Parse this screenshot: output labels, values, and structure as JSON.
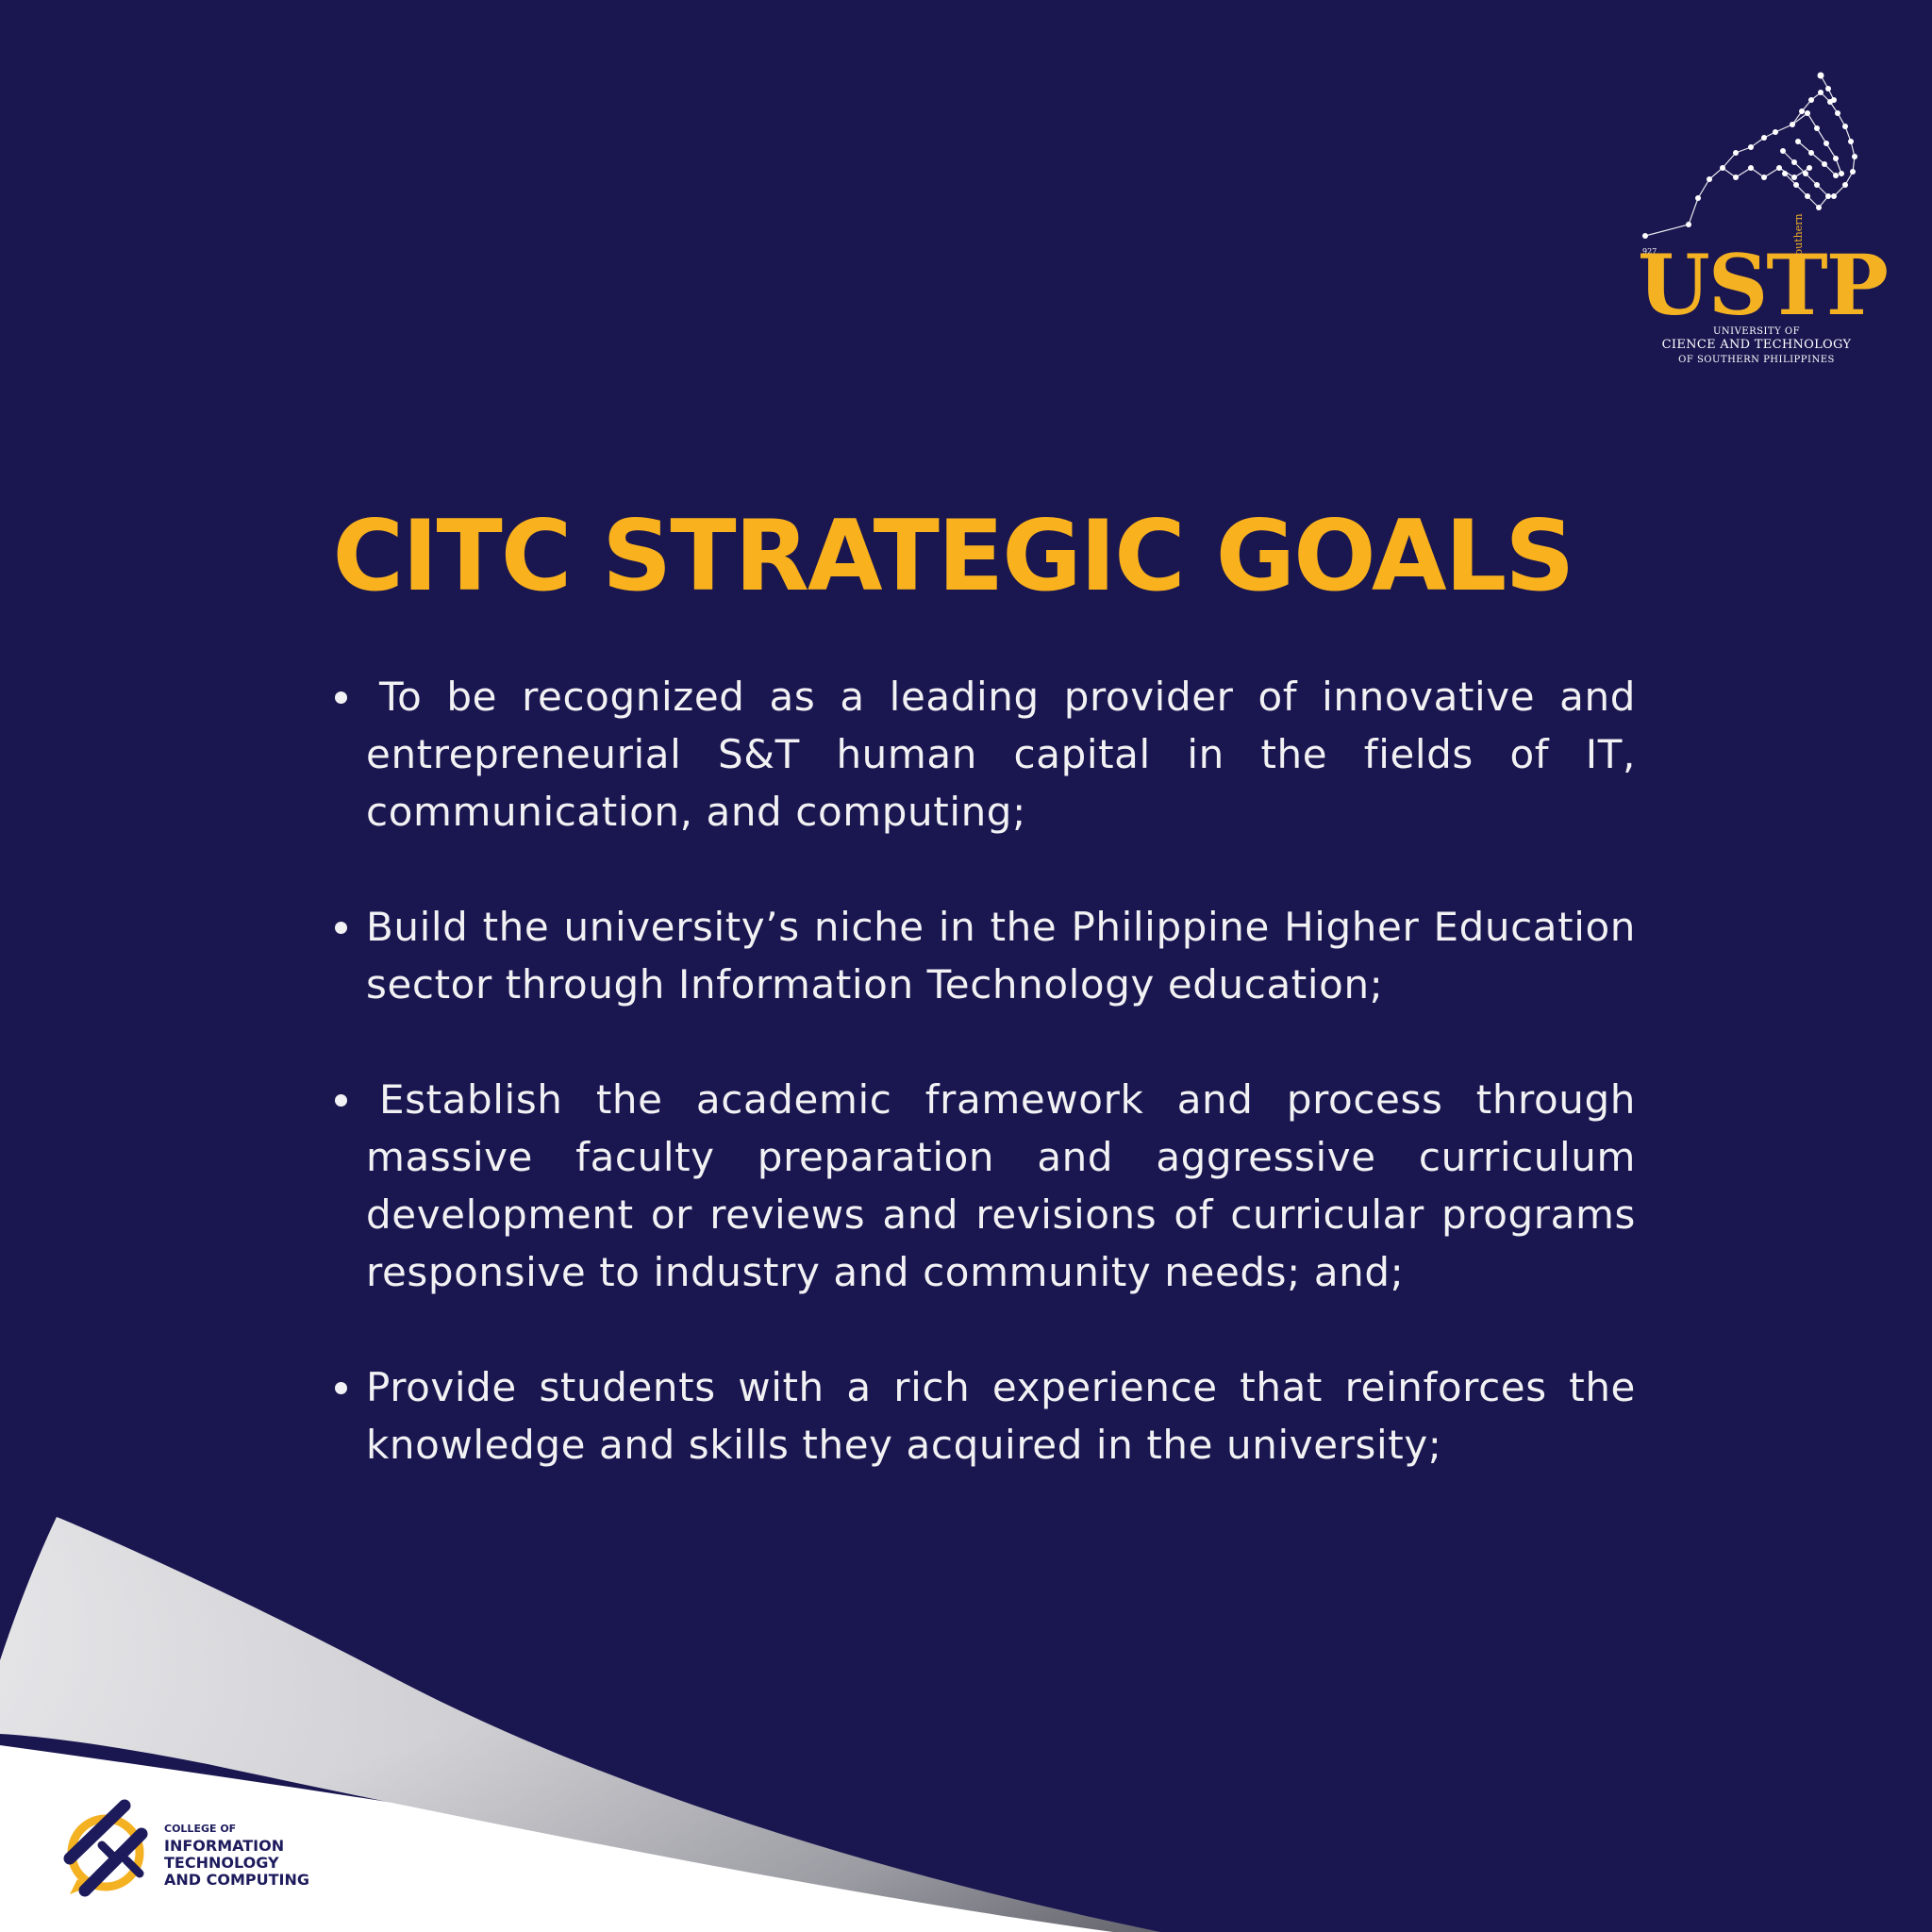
{
  "colors": {
    "background": "#1a1650",
    "title": "#f9b21d",
    "body_text": "#f2f2f4",
    "logo_gold": "#f4b223",
    "citc_navy": "#1d1b5c"
  },
  "ustp_logo": {
    "year": "927",
    "wordmark": "USTP",
    "southern": "Southern",
    "line1": "UNIVERSITY OF",
    "line2": "CIENCE AND TECHNOLOGY",
    "line3": "OF SOUTHERN PHILIPPINES"
  },
  "title": "CITC STRATEGIC GOALS",
  "goals": [
    "To be recognized as a leading provider of innovative and entrepreneurial S&T human capital in the fields of IT, communication, and computing;",
    "Build the university’s niche in the Philippine Higher Education sector through Information Technology education;",
    "Establish the academic framework and process through massive faculty preparation and aggressive curriculum development or reviews and revisions of curricular programs responsive to industry and community needs; and;",
    "Provide students with a rich experience that reinforces the knowledge and skills they acquired in the university;"
  ],
  "citc_logo": {
    "line1": "COLLEGE OF",
    "line2": "INFORMATION",
    "line3": "TECHNOLOGY",
    "line4": "AND COMPUTING"
  }
}
